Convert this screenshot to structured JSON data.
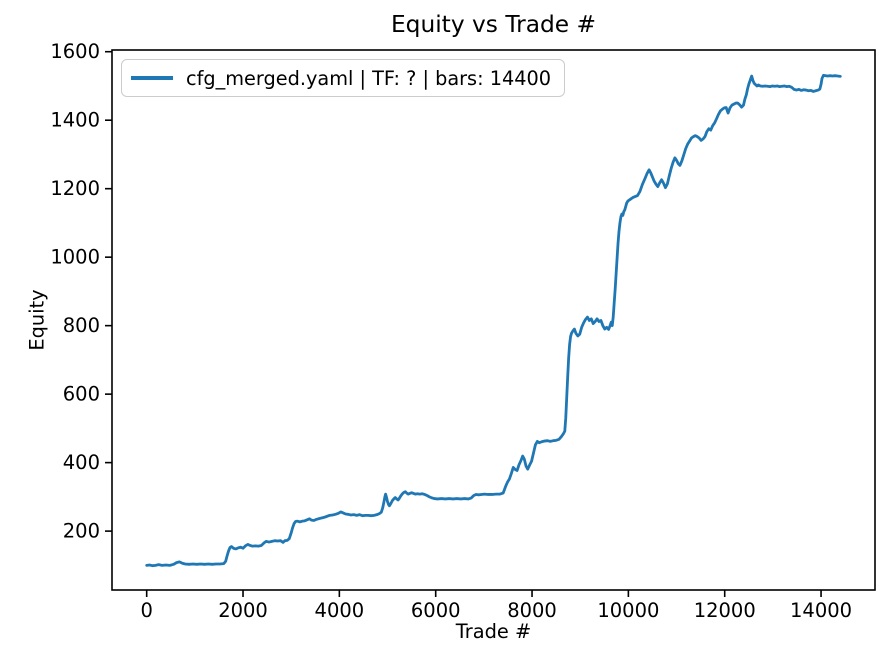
{
  "background_color": "#ffffff",
  "chart_data": {
    "type": "line",
    "title": "Equity vs Trade #",
    "xlabel": "Trade #",
    "ylabel": "Equity",
    "grid": false,
    "legend_position": "upper left",
    "xlim": [
      -720,
      15120
    ],
    "ylim": [
      28,
      1605
    ],
    "x_ticks": [
      0,
      2000,
      4000,
      6000,
      8000,
      10000,
      12000,
      14000
    ],
    "y_ticks": [
      200,
      400,
      600,
      800,
      1000,
      1200,
      1400,
      1600
    ],
    "axis_color": "#000000",
    "series": [
      {
        "name": "cfg_merged.yaml | TF: ? | bars: 14400",
        "color": "#1f77b4",
        "line_width": 2.8,
        "points": [
          [
            0,
            100
          ],
          [
            60,
            101
          ],
          [
            120,
            99
          ],
          [
            180,
            100
          ],
          [
            250,
            102
          ],
          [
            320,
            100
          ],
          [
            400,
            101
          ],
          [
            480,
            100
          ],
          [
            560,
            103
          ],
          [
            620,
            108
          ],
          [
            680,
            110
          ],
          [
            740,
            106
          ],
          [
            800,
            104
          ],
          [
            880,
            103
          ],
          [
            960,
            104
          ],
          [
            1040,
            103
          ],
          [
            1120,
            104
          ],
          [
            1200,
            103
          ],
          [
            1280,
            104
          ],
          [
            1360,
            103
          ],
          [
            1440,
            104
          ],
          [
            1520,
            104
          ],
          [
            1600,
            105
          ],
          [
            1640,
            112
          ],
          [
            1670,
            128
          ],
          [
            1700,
            142
          ],
          [
            1730,
            152
          ],
          [
            1760,
            155
          ],
          [
            1800,
            150
          ],
          [
            1850,
            148
          ],
          [
            1900,
            151
          ],
          [
            1950,
            153
          ],
          [
            2000,
            150
          ],
          [
            2050,
            157
          ],
          [
            2100,
            161
          ],
          [
            2150,
            158
          ],
          [
            2200,
            156
          ],
          [
            2260,
            157
          ],
          [
            2320,
            156
          ],
          [
            2380,
            158
          ],
          [
            2440,
            166
          ],
          [
            2480,
            170
          ],
          [
            2540,
            168
          ],
          [
            2600,
            170
          ],
          [
            2660,
            172
          ],
          [
            2720,
            171
          ],
          [
            2780,
            172
          ],
          [
            2830,
            167
          ],
          [
            2870,
            172
          ],
          [
            2920,
            173
          ],
          [
            2960,
            178
          ],
          [
            3000,
            195
          ],
          [
            3030,
            210
          ],
          [
            3060,
            222
          ],
          [
            3090,
            228
          ],
          [
            3130,
            229
          ],
          [
            3180,
            227
          ],
          [
            3230,
            229
          ],
          [
            3280,
            230
          ],
          [
            3330,
            233
          ],
          [
            3380,
            236
          ],
          [
            3420,
            232
          ],
          [
            3470,
            231
          ],
          [
            3520,
            234
          ],
          [
            3570,
            236
          ],
          [
            3620,
            238
          ],
          [
            3680,
            240
          ],
          [
            3740,
            243
          ],
          [
            3800,
            246
          ],
          [
            3860,
            247
          ],
          [
            3920,
            249
          ],
          [
            3980,
            252
          ],
          [
            4030,
            256
          ],
          [
            4080,
            253
          ],
          [
            4130,
            250
          ],
          [
            4180,
            249
          ],
          [
            4240,
            247
          ],
          [
            4300,
            248
          ],
          [
            4360,
            246
          ],
          [
            4420,
            248
          ],
          [
            4480,
            245
          ],
          [
            4540,
            246
          ],
          [
            4600,
            246
          ],
          [
            4660,
            245
          ],
          [
            4720,
            246
          ],
          [
            4780,
            248
          ],
          [
            4830,
            251
          ],
          [
            4870,
            255
          ],
          [
            4900,
            268
          ],
          [
            4925,
            285
          ],
          [
            4945,
            300
          ],
          [
            4960,
            308
          ],
          [
            4980,
            298
          ],
          [
            5000,
            286
          ],
          [
            5020,
            278
          ],
          [
            5040,
            274
          ],
          [
            5070,
            281
          ],
          [
            5100,
            289
          ],
          [
            5130,
            294
          ],
          [
            5160,
            298
          ],
          [
            5190,
            294
          ],
          [
            5220,
            291
          ],
          [
            5250,
            297
          ],
          [
            5280,
            304
          ],
          [
            5310,
            309
          ],
          [
            5340,
            313
          ],
          [
            5370,
            315
          ],
          [
            5400,
            311
          ],
          [
            5430,
            308
          ],
          [
            5460,
            310
          ],
          [
            5500,
            312
          ],
          [
            5540,
            310
          ],
          [
            5580,
            308
          ],
          [
            5620,
            309
          ],
          [
            5670,
            308
          ],
          [
            5720,
            309
          ],
          [
            5770,
            307
          ],
          [
            5820,
            304
          ],
          [
            5870,
            300
          ],
          [
            5920,
            297
          ],
          [
            5970,
            295
          ],
          [
            6040,
            294
          ],
          [
            6120,
            295
          ],
          [
            6200,
            294
          ],
          [
            6280,
            295
          ],
          [
            6360,
            294
          ],
          [
            6440,
            295
          ],
          [
            6520,
            294
          ],
          [
            6600,
            295
          ],
          [
            6680,
            294
          ],
          [
            6740,
            297
          ],
          [
            6790,
            304
          ],
          [
            6840,
            307
          ],
          [
            6890,
            306
          ],
          [
            6950,
            307
          ],
          [
            7010,
            308
          ],
          [
            7090,
            307
          ],
          [
            7170,
            307
          ],
          [
            7250,
            308
          ],
          [
            7330,
            308
          ],
          [
            7400,
            311
          ],
          [
            7450,
            330
          ],
          [
            7490,
            343
          ],
          [
            7530,
            352
          ],
          [
            7570,
            368
          ],
          [
            7610,
            386
          ],
          [
            7650,
            380
          ],
          [
            7690,
            377
          ],
          [
            7730,
            394
          ],
          [
            7770,
            406
          ],
          [
            7805,
            419
          ],
          [
            7840,
            410
          ],
          [
            7875,
            390
          ],
          [
            7910,
            381
          ],
          [
            7950,
            393
          ],
          [
            7990,
            404
          ],
          [
            8030,
            428
          ],
          [
            8070,
            452
          ],
          [
            8110,
            462
          ],
          [
            8150,
            458
          ],
          [
            8200,
            461
          ],
          [
            8260,
            463
          ],
          [
            8320,
            464
          ],
          [
            8380,
            462
          ],
          [
            8440,
            464
          ],
          [
            8500,
            465
          ],
          [
            8560,
            468
          ],
          [
            8610,
            476
          ],
          [
            8650,
            484
          ],
          [
            8680,
            492
          ],
          [
            8700,
            530
          ],
          [
            8720,
            590
          ],
          [
            8740,
            650
          ],
          [
            8760,
            705
          ],
          [
            8780,
            745
          ],
          [
            8800,
            768
          ],
          [
            8820,
            778
          ],
          [
            8850,
            785
          ],
          [
            8880,
            790
          ],
          [
            8910,
            778
          ],
          [
            8950,
            770
          ],
          [
            8990,
            775
          ],
          [
            9030,
            795
          ],
          [
            9070,
            808
          ],
          [
            9110,
            818
          ],
          [
            9150,
            825
          ],
          [
            9190,
            815
          ],
          [
            9230,
            820
          ],
          [
            9270,
            806
          ],
          [
            9310,
            812
          ],
          [
            9350,
            820
          ],
          [
            9390,
            812
          ],
          [
            9430,
            815
          ],
          [
            9470,
            800
          ],
          [
            9510,
            790
          ],
          [
            9550,
            795
          ],
          [
            9590,
            789
          ],
          [
            9620,
            800
          ],
          [
            9645,
            810
          ],
          [
            9665,
            800
          ],
          [
            9685,
            825
          ],
          [
            9705,
            865
          ],
          [
            9725,
            905
          ],
          [
            9745,
            950
          ],
          [
            9765,
            995
          ],
          [
            9785,
            1040
          ],
          [
            9805,
            1075
          ],
          [
            9825,
            1100
          ],
          [
            9845,
            1118
          ],
          [
            9865,
            1126
          ],
          [
            9885,
            1122
          ],
          [
            9905,
            1133
          ],
          [
            9925,
            1138
          ],
          [
            9945,
            1148
          ],
          [
            9965,
            1158
          ],
          [
            9990,
            1164
          ],
          [
            10040,
            1169
          ],
          [
            10090,
            1174
          ],
          [
            10140,
            1177
          ],
          [
            10190,
            1180
          ],
          [
            10240,
            1192
          ],
          [
            10290,
            1212
          ],
          [
            10340,
            1228
          ],
          [
            10390,
            1245
          ],
          [
            10430,
            1255
          ],
          [
            10465,
            1246
          ],
          [
            10500,
            1234
          ],
          [
            10535,
            1222
          ],
          [
            10570,
            1214
          ],
          [
            10610,
            1206
          ],
          [
            10650,
            1217
          ],
          [
            10690,
            1226
          ],
          [
            10730,
            1216
          ],
          [
            10770,
            1203
          ],
          [
            10810,
            1214
          ],
          [
            10850,
            1238
          ],
          [
            10890,
            1260
          ],
          [
            10930,
            1278
          ],
          [
            10965,
            1290
          ],
          [
            11000,
            1283
          ],
          [
            11035,
            1273
          ],
          [
            11070,
            1268
          ],
          [
            11110,
            1281
          ],
          [
            11150,
            1299
          ],
          [
            11190,
            1317
          ],
          [
            11230,
            1330
          ],
          [
            11270,
            1339
          ],
          [
            11310,
            1348
          ],
          [
            11350,
            1352
          ],
          [
            11390,
            1355
          ],
          [
            11430,
            1352
          ],
          [
            11470,
            1348
          ],
          [
            11510,
            1341
          ],
          [
            11550,
            1345
          ],
          [
            11590,
            1352
          ],
          [
            11630,
            1367
          ],
          [
            11670,
            1375
          ],
          [
            11710,
            1371
          ],
          [
            11750,
            1384
          ],
          [
            11790,
            1392
          ],
          [
            11830,
            1404
          ],
          [
            11870,
            1417
          ],
          [
            11910,
            1427
          ],
          [
            11950,
            1432
          ],
          [
            11990,
            1436
          ],
          [
            12030,
            1437
          ],
          [
            12070,
            1421
          ],
          [
            12110,
            1436
          ],
          [
            12150,
            1444
          ],
          [
            12190,
            1447
          ],
          [
            12230,
            1450
          ],
          [
            12270,
            1450
          ],
          [
            12310,
            1445
          ],
          [
            12350,
            1438
          ],
          [
            12390,
            1444
          ],
          [
            12420,
            1462
          ],
          [
            12450,
            1475
          ],
          [
            12475,
            1492
          ],
          [
            12500,
            1505
          ],
          [
            12530,
            1517
          ],
          [
            12560,
            1529
          ],
          [
            12585,
            1516
          ],
          [
            12610,
            1508
          ],
          [
            12640,
            1504
          ],
          [
            12670,
            1500
          ],
          [
            12700,
            1503
          ],
          [
            12740,
            1500
          ],
          [
            12790,
            1499
          ],
          [
            12840,
            1500
          ],
          [
            12890,
            1499
          ],
          [
            12940,
            1498
          ],
          [
            12990,
            1500
          ],
          [
            13040,
            1499
          ],
          [
            13090,
            1500
          ],
          [
            13140,
            1498
          ],
          [
            13190,
            1499
          ],
          [
            13240,
            1500
          ],
          [
            13290,
            1498
          ],
          [
            13340,
            1499
          ],
          [
            13390,
            1496
          ],
          [
            13440,
            1490
          ],
          [
            13490,
            1488
          ],
          [
            13540,
            1490
          ],
          [
            13590,
            1487
          ],
          [
            13640,
            1489
          ],
          [
            13690,
            1488
          ],
          [
            13740,
            1486
          ],
          [
            13790,
            1487
          ],
          [
            13840,
            1484
          ],
          [
            13890,
            1486
          ],
          [
            13940,
            1488
          ],
          [
            13975,
            1491
          ],
          [
            14000,
            1505
          ],
          [
            14020,
            1522
          ],
          [
            14050,
            1531
          ],
          [
            14090,
            1530
          ],
          [
            14140,
            1529
          ],
          [
            14190,
            1530
          ],
          [
            14240,
            1529
          ],
          [
            14290,
            1530
          ],
          [
            14340,
            1529
          ],
          [
            14400,
            1528
          ]
        ]
      }
    ]
  }
}
